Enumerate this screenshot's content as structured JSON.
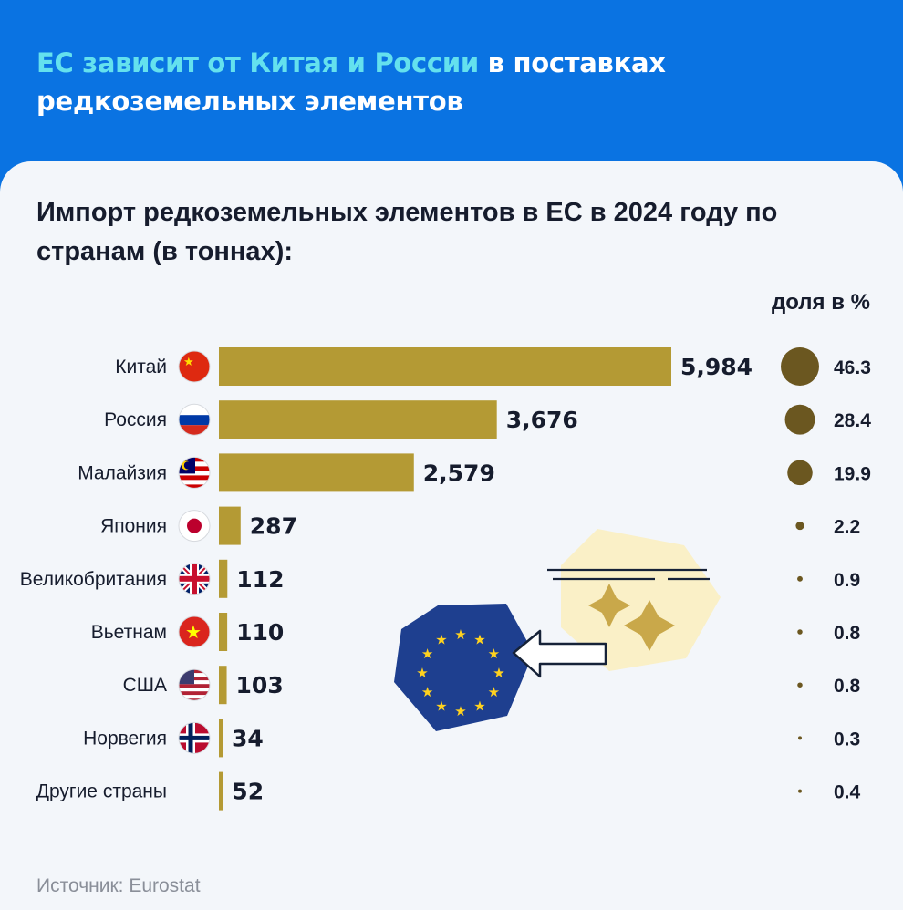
{
  "header": {
    "headline_highlight": "ЕС зависит от Китая и России",
    "headline_rest_1": " в поставках",
    "headline_line2": "редкоземельных элементов"
  },
  "subtitle": "Импорт редкоземельных элементов в ЕС в 2024 году по странам (в тоннах):",
  "share_header": "доля в %",
  "source": "Источник: Eurostat",
  "colors": {
    "header_bg": "#0a73e2",
    "highlight": "#64e1ee",
    "bar": "#b49a34",
    "dot": "#6b5720",
    "eu_blue": "#1e3f8f",
    "eu_star": "#ffd21f"
  },
  "chart_data": {
    "type": "bar",
    "orientation": "horizontal",
    "categories": [
      "Китай",
      "Россия",
      "Малайзия",
      "Япония",
      "Великобритания",
      "Вьетнам",
      "США",
      "Норвегия",
      "Другие страны"
    ],
    "flags": [
      "china-flag",
      "russia-flag",
      "malaysia-flag",
      "japan-flag",
      "uk-flag",
      "vietnam-flag",
      "usa-flag",
      "norway-flag",
      "none"
    ],
    "values": [
      5984,
      3676,
      2579,
      287,
      112,
      110,
      103,
      34,
      52
    ],
    "value_labels": [
      "5,984",
      "3,676",
      "2,579",
      "287",
      "112",
      "110",
      "103",
      "34",
      "52"
    ],
    "share_pct": [
      46.3,
      28.4,
      19.9,
      2.2,
      0.9,
      0.8,
      0.8,
      0.3,
      0.4
    ],
    "share_labels": [
      "46.3",
      "28.4",
      "19.9",
      "2.2",
      "0.9",
      "0.8",
      "0.8",
      "0.3",
      "0.4"
    ],
    "share_header": "доля в %"
  }
}
